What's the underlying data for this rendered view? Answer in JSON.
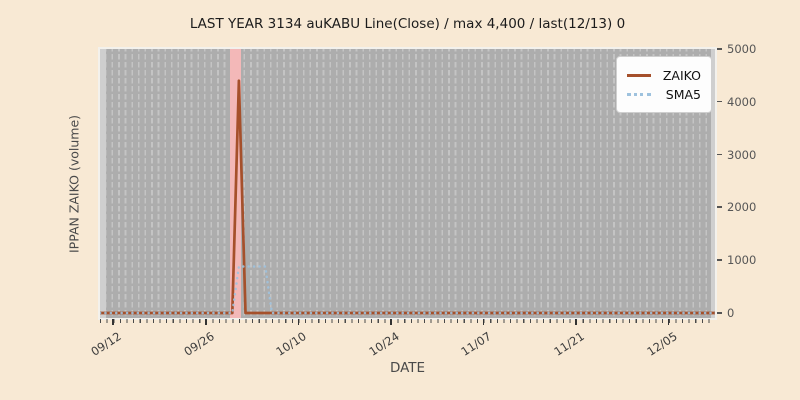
{
  "chart_data": {
    "type": "line",
    "title": "LAST YEAR 3134 auKABU Line(Close) / max 4,400 / last(12/13) 0",
    "xlabel": "DATE",
    "ylabel": "IPPAN ZAIKO (volume)",
    "ylim": [
      0,
      5000
    ],
    "grid": "vertical-dashed-daily",
    "legend_position": "upper right",
    "figure_bg": "#f8e9d4",
    "plot_bg": "#adadad",
    "x_axis_day0_date": "09/10",
    "x_span_days": 93,
    "x_ticks": [
      {
        "date": "09/12",
        "label": "09/12"
      },
      {
        "date": "09/26",
        "label": "09/26"
      },
      {
        "date": "10/10",
        "label": "10/10"
      },
      {
        "date": "10/24",
        "label": "10/24"
      },
      {
        "date": "11/07",
        "label": "11/07"
      },
      {
        "date": "11/21",
        "label": "11/21"
      },
      {
        "date": "12/05",
        "label": "12/05"
      }
    ],
    "y_ticks": [
      {
        "value": 0,
        "label": "0"
      },
      {
        "value": 1000,
        "label": "1000"
      },
      {
        "value": 2000,
        "label": "2000"
      },
      {
        "value": 3000,
        "label": "3000"
      },
      {
        "value": 4000,
        "label": "4000"
      },
      {
        "value": 5000,
        "label": "5000"
      }
    ],
    "series": [
      {
        "name": "ZAIKO",
        "color": "#a5502b",
        "style": "solid",
        "points_date_value": [
          [
            "09/10",
            0
          ],
          [
            "09/30",
            0
          ],
          [
            "10/01",
            4400
          ],
          [
            "10/02",
            0
          ],
          [
            "12/13",
            0
          ]
        ]
      },
      {
        "name": "SMA5",
        "color": "#9ec2de",
        "style": "dotted",
        "points_date_value": [
          [
            "09/10",
            0
          ],
          [
            "09/30",
            0
          ],
          [
            "10/01",
            880
          ],
          [
            "10/05",
            880
          ],
          [
            "10/06",
            0
          ],
          [
            "12/13",
            0
          ]
        ]
      }
    ],
    "highlight_span": {
      "from_day": 19.6,
      "to_day": 21.4,
      "color": "#f3b8b8"
    }
  }
}
